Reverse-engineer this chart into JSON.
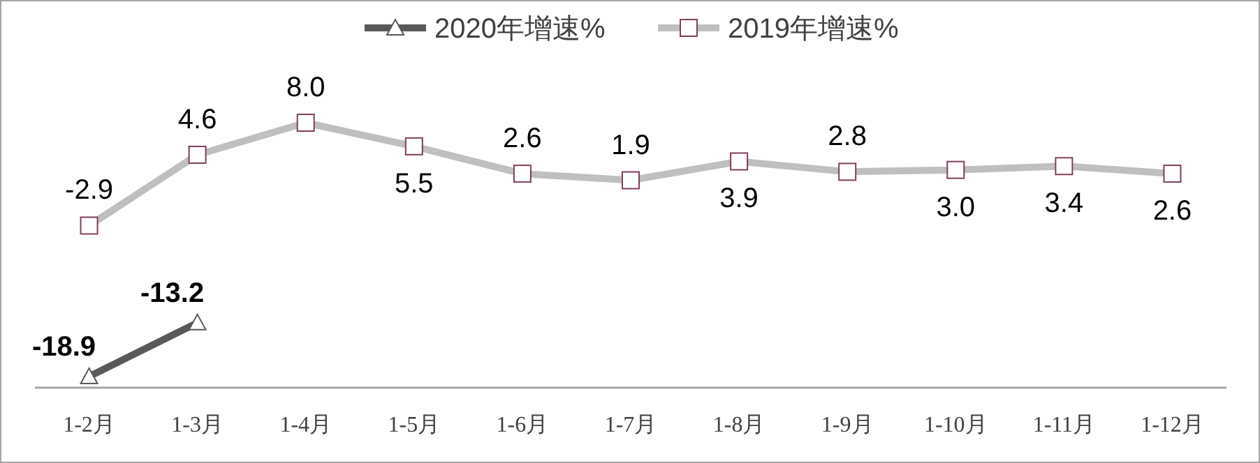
{
  "chart_data": {
    "type": "line",
    "categories": [
      "1-2月",
      "1-3月",
      "1-4月",
      "1-5月",
      "1-6月",
      "1-7月",
      "1-8月",
      "1-9月",
      "1-10月",
      "1-11月",
      "1-12月"
    ],
    "tick_labels": "x",
    "legend": "top",
    "series": [
      {
        "name": "2020年增速%",
        "color": "#595959",
        "marker": "triangle",
        "values": [
          -18.9,
          -13.2,
          null,
          null,
          null,
          null,
          null,
          null,
          null,
          null,
          null
        ],
        "value_labels": [
          "-18.9",
          "-13.2",
          null,
          null,
          null,
          null,
          null,
          null,
          null,
          null,
          null
        ]
      },
      {
        "name": "2019年增速%",
        "color": "#bfbfbf",
        "marker": "square",
        "values": [
          -2.9,
          4.6,
          8.0,
          5.5,
          2.6,
          1.9,
          3.9,
          2.8,
          3.0,
          3.4,
          2.6
        ],
        "value_labels": [
          "-2.9",
          "4.6",
          "8.0",
          "5.5",
          "2.6",
          "1.9",
          "3.9",
          "2.8",
          "3.0",
          "3.4",
          "2.6"
        ]
      }
    ]
  }
}
